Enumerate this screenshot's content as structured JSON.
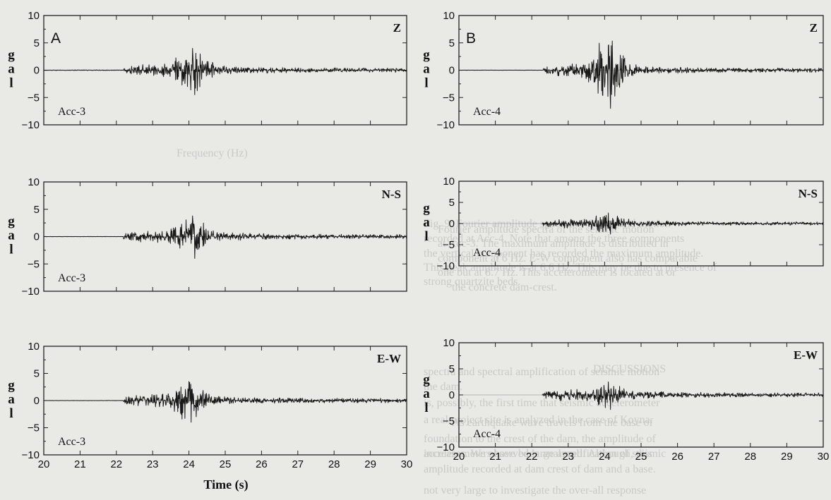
{
  "chart_data": [
    {
      "type": "line",
      "panel": "A",
      "component": "Z",
      "station": "Acc-3",
      "ylabel": "g a l",
      "xlim": [
        20,
        30
      ],
      "ylim": [
        -10,
        10
      ],
      "yticks": [
        -10,
        -5,
        0,
        5,
        10
      ],
      "series": [
        {
          "onset": 22.2,
          "peak_time": 24.1,
          "peak_pos": 4.0,
          "peak_neg": -4.5,
          "pre_event_amp": 0.3,
          "coda_amp": 0.3
        }
      ]
    },
    {
      "type": "line",
      "panel": "B",
      "component": "Z",
      "station": "Acc-4",
      "ylabel": "g a l",
      "xlim": [
        20,
        30
      ],
      "ylim": [
        -10,
        10
      ],
      "yticks": [
        -10,
        -5,
        0,
        5,
        10
      ],
      "series": [
        {
          "onset": 22.3,
          "peak_time": 24.1,
          "peak_pos": 4.5,
          "peak_neg": -7.0,
          "pre_event_amp": 0.1,
          "coda_amp": 0.3
        }
      ]
    },
    {
      "type": "line",
      "panel": "A",
      "component": "N-S",
      "station": "Acc-3",
      "ylabel": "g a l",
      "xlim": [
        20,
        30
      ],
      "ylim": [
        -10,
        10
      ],
      "yticks": [
        -10,
        -5,
        0,
        5,
        10
      ],
      "series": [
        {
          "onset": 22.2,
          "peak_time": 24.1,
          "peak_pos": 3.8,
          "peak_neg": -4.0,
          "pre_event_amp": 0.1,
          "coda_amp": 0.4
        }
      ]
    },
    {
      "type": "line",
      "panel": "B",
      "component": "N-S",
      "station": "Acc-4",
      "ylabel": "g a l",
      "xlim": [
        20,
        30
      ],
      "ylim": [
        -10,
        10
      ],
      "yticks": [
        -10,
        -5,
        0,
        5,
        10
      ],
      "series": [
        {
          "onset": 22.3,
          "peak_time": 24.1,
          "peak_pos": 2.5,
          "peak_neg": -2.5,
          "pre_event_amp": 0.1,
          "coda_amp": 0.3
        }
      ]
    },
    {
      "type": "line",
      "panel": "A",
      "component": "E-W",
      "station": "Acc-3",
      "ylabel": "g a l",
      "xlim": [
        20,
        30
      ],
      "ylim": [
        -10,
        10
      ],
      "yticks": [
        -10,
        -5,
        0,
        5,
        10
      ],
      "series": [
        {
          "onset": 22.2,
          "peak_time": 24.0,
          "peak_pos": 3.5,
          "peak_neg": -4.0,
          "pre_event_amp": 0.1,
          "coda_amp": 0.3
        }
      ]
    },
    {
      "type": "line",
      "panel": "B",
      "component": "E-W",
      "station": "Acc-4",
      "ylabel": "g a l",
      "xlim": [
        20,
        30
      ],
      "ylim": [
        -10,
        10
      ],
      "yticks": [
        -10,
        -5,
        0,
        5,
        10
      ],
      "series": [
        {
          "onset": 22.3,
          "peak_time": 24.1,
          "peak_pos": 2.5,
          "peak_neg": -2.8,
          "pre_event_amp": 0.1,
          "coda_amp": 0.3
        }
      ]
    }
  ],
  "xticks": [
    20,
    21,
    22,
    23,
    24,
    25,
    26,
    27,
    28,
    29,
    30
  ],
  "xlabel": "Time (s)",
  "colors": {
    "trace": "#1a1a1a",
    "axis": "#222222",
    "background": "#e9e9e6",
    "bleed_text": "#c9c9c5"
  },
  "background_text": {
    "lines": [
      "Fig. 9: Fourier amplitude spectra of the ground motion",
      "recorded at Acc-4. Note that among the three components",
      "the vertical component has recorded the maximum amplitude.",
      "This peak amplitude is at 6.6 Hz. This may be due to presence of",
      "strong quartzite beds.",
      "Fourier amplitude spectra of the seismic motion",
      "at Acc-3. The maximum amplitude is distributed in",
      "component at 6 Hz. E-W component also has comparable",
      "one but at 8.7 Hz. This accelerometer is located at or",
      "the concrete dam-crest.",
      "DISCUSSIONS",
      "spectra and spectral amplification of seismic motion",
      "the dam.",
      "As earthquake wave travels from the base of",
      "foundation to the crest of the dam, the amplitude of",
      "increases. We observed large amplification of seismic",
      "amplitude recorded at dam crest of dam and a base.",
      "is, possibly, the first time that seismic accelerometer",
      "a real project site is analyzed in the case of Koyna.",
      "accelerometers have been analyzed. Although, this",
      "not very large to investigate the over-all response",
      "Frequency (Hz)"
    ]
  }
}
